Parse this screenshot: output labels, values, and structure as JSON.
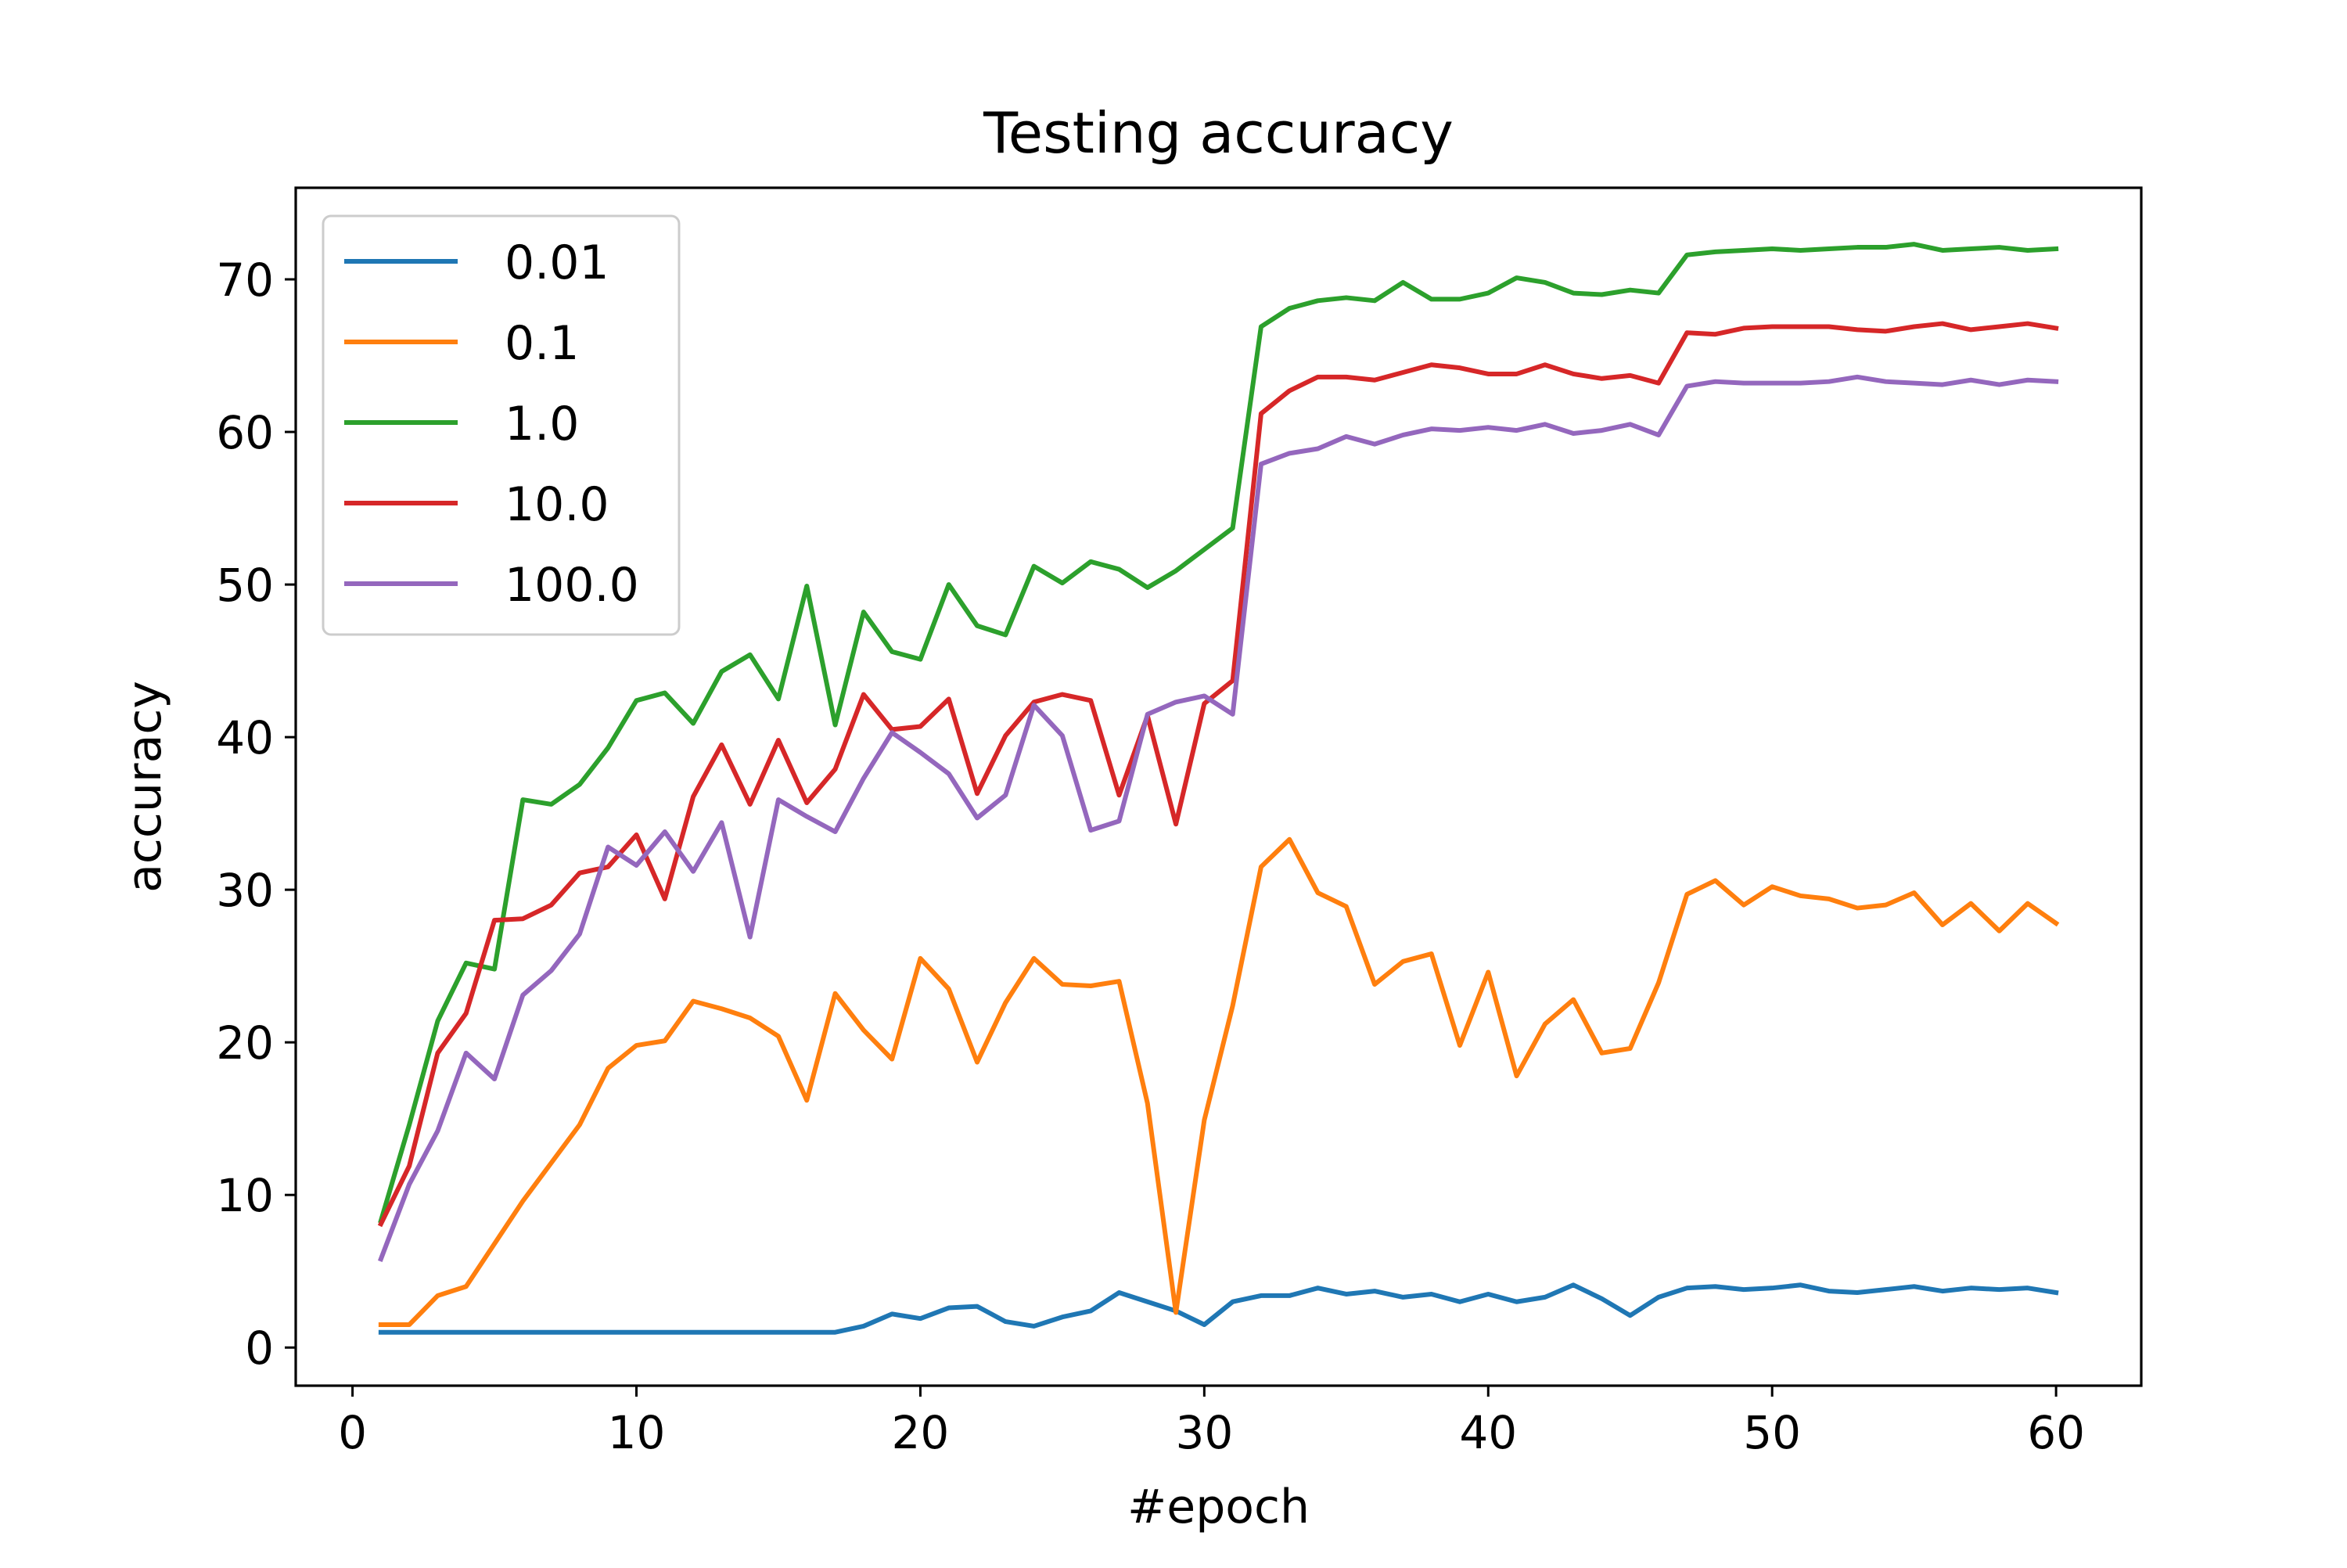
{
  "chart_data": {
    "type": "line",
    "title": "Testing accuracy",
    "xlabel": "#epoch",
    "ylabel": "accuracy",
    "xlim": [
      -2,
      63
    ],
    "ylim": [
      -2.5,
      76
    ],
    "xticks": [
      0,
      10,
      20,
      30,
      40,
      50,
      60
    ],
    "yticks": [
      0,
      10,
      20,
      30,
      40,
      50,
      60,
      70
    ],
    "grid": false,
    "legend_position": "top-left",
    "x": [
      1,
      2,
      3,
      4,
      5,
      6,
      7,
      8,
      9,
      10,
      11,
      12,
      13,
      14,
      15,
      16,
      17,
      18,
      19,
      20,
      21,
      22,
      23,
      24,
      25,
      26,
      27,
      28,
      29,
      30,
      31,
      32,
      33,
      34,
      35,
      36,
      37,
      38,
      39,
      40,
      41,
      42,
      43,
      44,
      45,
      46,
      47,
      48,
      49,
      50,
      51,
      52,
      53,
      54,
      55,
      56,
      57,
      58,
      59,
      60
    ],
    "series": [
      {
        "name": "0.01",
        "color": "#1f77b4",
        "values": [
          1.0,
          1.0,
          1.0,
          1.0,
          1.0,
          1.0,
          1.0,
          1.0,
          1.0,
          1.0,
          1.0,
          1.0,
          1.0,
          1.0,
          1.0,
          1.0,
          1.0,
          1.4,
          2.2,
          1.9,
          2.6,
          2.7,
          1.7,
          1.4,
          2.0,
          2.4,
          3.6,
          3.0,
          2.4,
          1.5,
          3.0,
          3.4,
          3.4,
          3.9,
          3.5,
          3.7,
          3.3,
          3.5,
          3.0,
          3.5,
          3.0,
          3.3,
          4.1,
          3.2,
          2.1,
          3.3,
          3.9,
          4.0,
          3.8,
          3.9,
          4.1,
          3.7,
          3.6,
          3.8,
          4.0,
          3.7,
          3.9,
          3.8,
          3.9,
          3.6
        ]
      },
      {
        "name": "0.1",
        "color": "#ff7f0e",
        "values": [
          1.5,
          1.5,
          3.4,
          4.0,
          6.8,
          9.6,
          12.1,
          14.6,
          18.3,
          19.8,
          20.1,
          22.7,
          22.2,
          21.6,
          20.4,
          16.2,
          23.2,
          20.8,
          18.9,
          25.5,
          23.5,
          18.7,
          22.6,
          25.5,
          23.8,
          23.7,
          24.0,
          16.0,
          2.3,
          14.9,
          22.4,
          31.5,
          33.3,
          29.8,
          28.9,
          23.8,
          25.3,
          25.8,
          19.8,
          24.6,
          17.8,
          21.2,
          22.8,
          19.3,
          19.6,
          23.9,
          29.7,
          30.6,
          29.0,
          30.2,
          29.6,
          29.4,
          28.8,
          29.0,
          29.8,
          27.7,
          29.1,
          27.3,
          29.1,
          27.8
        ]
      },
      {
        "name": "1.0",
        "color": "#2ca02c",
        "values": [
          8.3,
          14.6,
          21.4,
          25.2,
          24.8,
          35.9,
          35.6,
          36.9,
          39.3,
          42.4,
          42.9,
          40.9,
          44.3,
          45.4,
          42.5,
          49.9,
          40.8,
          48.2,
          45.6,
          45.1,
          50.0,
          47.3,
          46.7,
          51.2,
          50.1,
          51.5,
          51.0,
          49.8,
          50.9,
          52.3,
          53.7,
          66.9,
          68.1,
          68.6,
          68.8,
          68.6,
          69.8,
          68.7,
          68.7,
          69.1,
          70.1,
          69.8,
          69.1,
          69.0,
          69.3,
          69.1,
          71.6,
          71.8,
          71.9,
          72.0,
          71.9,
          72.0,
          72.1,
          72.1,
          72.3,
          71.9,
          72.0,
          72.1,
          71.9,
          72.0
        ]
      },
      {
        "name": "10.0",
        "color": "#d62728",
        "values": [
          8.1,
          11.9,
          19.3,
          21.9,
          28.0,
          28.1,
          29.0,
          31.1,
          31.5,
          33.6,
          29.4,
          36.1,
          39.5,
          35.6,
          39.8,
          35.7,
          37.9,
          42.8,
          40.5,
          40.7,
          42.5,
          36.3,
          40.1,
          42.3,
          42.8,
          42.4,
          36.2,
          41.4,
          34.3,
          42.2,
          43.7,
          61.2,
          62.7,
          63.6,
          63.6,
          63.4,
          63.9,
          64.4,
          64.2,
          63.8,
          63.8,
          64.4,
          63.8,
          63.5,
          63.7,
          63.2,
          66.5,
          66.4,
          66.8,
          66.9,
          66.9,
          66.9,
          66.7,
          66.6,
          66.9,
          67.1,
          66.7,
          66.9,
          67.1,
          66.8
        ]
      },
      {
        "name": "100.0",
        "color": "#9467bd",
        "values": [
          5.8,
          10.7,
          14.2,
          19.3,
          17.6,
          23.1,
          24.7,
          27.1,
          32.8,
          31.6,
          33.8,
          31.2,
          34.4,
          26.9,
          35.9,
          34.8,
          33.8,
          37.3,
          40.3,
          39.0,
          37.6,
          34.7,
          36.2,
          42.1,
          40.1,
          33.9,
          34.5,
          41.5,
          42.3,
          42.7,
          41.5,
          57.9,
          58.6,
          58.9,
          59.7,
          59.2,
          59.8,
          60.2,
          60.1,
          60.3,
          60.1,
          60.5,
          59.9,
          60.1,
          60.5,
          59.8,
          63.0,
          63.3,
          63.2,
          63.2,
          63.2,
          63.3,
          63.6,
          63.3,
          63.2,
          63.1,
          63.4,
          63.1,
          63.4,
          63.3
        ]
      }
    ]
  }
}
